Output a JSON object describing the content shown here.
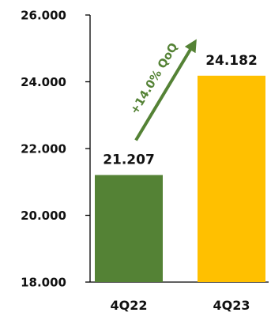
{
  "chart_data": {
    "type": "bar",
    "title": "",
    "xlabel": "",
    "ylabel": "",
    "categories": [
      "4Q22",
      "4Q23"
    ],
    "values": [
      21207,
      24182
    ],
    "data_labels": [
      "21.207",
      "24.182"
    ],
    "ylim": [
      18000,
      26000
    ],
    "yticks": [
      18000,
      20000,
      22000,
      24000,
      26000
    ],
    "ytick_labels": [
      "18.000",
      "20.000",
      "22.000",
      "24.000",
      "26.000"
    ],
    "bar_colors": [
      "#548235",
      "#FFC000"
    ],
    "grid": false,
    "legend": "none",
    "annotation": {
      "text": "+14.0% QoQ",
      "color": "#548235",
      "type": "arrow",
      "from_category": "4Q22",
      "to_category": "4Q23"
    }
  }
}
